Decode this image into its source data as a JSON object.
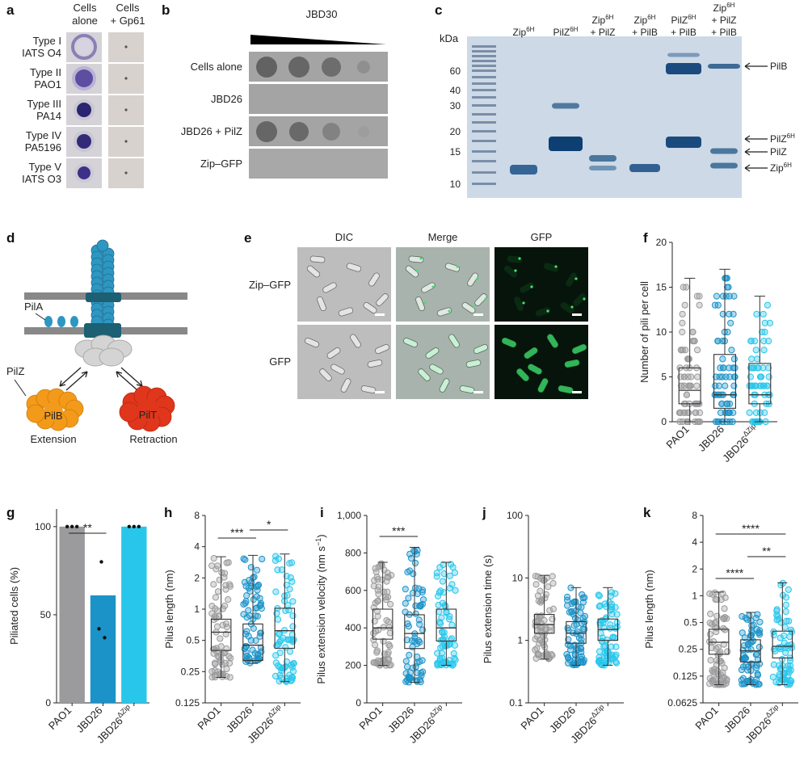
{
  "panels": {
    "a": {
      "letter": "a",
      "col_headers": [
        "Cells\nalone",
        "Cells\n+ Gp61"
      ],
      "rows": [
        "Type I\nIATS O4",
        "Type II\nPAO1",
        "Type III\nPA14",
        "Type IV\nPA5196",
        "Type V\nIATS O3"
      ]
    },
    "b": {
      "letter": "b",
      "header": "JBD30",
      "rows": [
        "Cells alone",
        "JBD26",
        "JBD26 + PilZ",
        "Zip–GFP"
      ]
    },
    "c": {
      "letter": "c",
      "kda_label": "kDa",
      "lanes": [
        "Zip6H",
        "PilZ6H",
        "Zip6H + PilZ",
        "Zip6H + PilB",
        "PilZ6H + PilB",
        "Zip6H + PilZ + PilB"
      ],
      "markers": [
        "60",
        "40",
        "30",
        "20",
        "15",
        "10"
      ],
      "band_labels": [
        "PilB",
        "PilZ6H",
        "PilZ",
        "Zip6H"
      ]
    },
    "d": {
      "letter": "d",
      "labels": {
        "pila": "PilA",
        "pilz": "PilZ",
        "pilb": "PilB",
        "pilt": "PilT",
        "extension": "Extension",
        "retraction": "Retraction"
      }
    },
    "e": {
      "letter": "e",
      "cols": [
        "DIC",
        "Merge",
        "GFP"
      ],
      "rows": [
        "Zip–GFP",
        "GFP"
      ]
    },
    "colors": {
      "paO1": "#9b9b9d",
      "jbd26": "#1c93c8",
      "jbd26dzip": "#29c6ec",
      "diagram_blue": "#2d97c2",
      "diagram_dark": "#1d5f73",
      "pilb": "#f39a1a",
      "pilt": "#e0361c"
    }
  },
  "chart_data": [
    {
      "id": "f",
      "letter": "f",
      "type": "box",
      "categories": [
        "PAO1",
        "JBD26",
        "JBD26ΔZip"
      ],
      "ylabel": "Number of pili per cell",
      "ylim": [
        0,
        20
      ],
      "yticks": [
        "0",
        "5",
        "10",
        "15",
        "20"
      ],
      "scale": "linear",
      "boxes": [
        {
          "min": 0,
          "q1": 2,
          "median": 3.5,
          "q3": 6,
          "max": 16
        },
        {
          "min": 0,
          "q1": 1.5,
          "median": 3,
          "q3": 7.5,
          "max": 17
        },
        {
          "min": 0,
          "q1": 2,
          "median": 3,
          "q3": 6.5,
          "max": 14
        }
      ]
    },
    {
      "id": "g",
      "letter": "g",
      "type": "bar",
      "categories": [
        "PAO1",
        "JBD26",
        "JBD26ΔZip"
      ],
      "ylabel": "Piliated cells (%)",
      "ylim": [
        0,
        110
      ],
      "yticks": [
        "0",
        "50",
        "100"
      ],
      "values": [
        100,
        61,
        100
      ],
      "points": [
        [
          100,
          100,
          100
        ],
        [
          80,
          42,
          37
        ],
        [
          100,
          100,
          100
        ]
      ],
      "significance": [
        {
          "from": 0,
          "to": 1,
          "label": "**"
        }
      ]
    },
    {
      "id": "h",
      "letter": "h",
      "type": "box",
      "categories": [
        "PAO1",
        "JBD26",
        "JBD26ΔZip"
      ],
      "ylabel": "Pilus length (nm)",
      "ylim": [
        0.125,
        8
      ],
      "yticks": [
        "0.125",
        "0.25",
        "0.5",
        "1",
        "2",
        "4",
        "8"
      ],
      "scale": "log2",
      "boxes": [
        {
          "min": 0.22,
          "q1": 0.4,
          "median": 0.6,
          "q3": 0.8,
          "max": 3.2
        },
        {
          "min": 0.3,
          "q1": 0.32,
          "median": 0.45,
          "q3": 0.72,
          "max": 3.3
        },
        {
          "min": 0.2,
          "q1": 0.42,
          "median": 0.62,
          "q3": 1.02,
          "max": 3.4
        }
      ],
      "significance": [
        {
          "from": 0,
          "to": 1,
          "label": "***"
        },
        {
          "from": 1,
          "to": 2,
          "label": "*"
        }
      ]
    },
    {
      "id": "i",
      "letter": "i",
      "type": "box",
      "categories": [
        "PAO1",
        "JBD26",
        "JBD26ΔZip"
      ],
      "ylabel": "Pilus extension velocity (nm s−1)",
      "ylim": [
        0,
        1000
      ],
      "yticks": [
        "0",
        "200",
        "400",
        "600",
        "800",
        "1,000"
      ],
      "scale": "linear",
      "boxes": [
        {
          "min": 200,
          "q1": 340,
          "median": 400,
          "q3": 500,
          "max": 750
        },
        {
          "min": 110,
          "q1": 290,
          "median": 370,
          "q3": 470,
          "max": 830
        },
        {
          "min": 200,
          "q1": 330,
          "median": 400,
          "q3": 500,
          "max": 750
        }
      ],
      "significance": [
        {
          "from": 0,
          "to": 1,
          "label": "***"
        }
      ]
    },
    {
      "id": "j",
      "letter": "j",
      "type": "box",
      "categories": [
        "PAO1",
        "JBD26",
        "JBD26ΔZip"
      ],
      "ylabel": "Pilus extension time (s)",
      "ylim": [
        0.1,
        100
      ],
      "yticks": [
        "0.1",
        "1",
        "10",
        "100"
      ],
      "scale": "log10",
      "boxes": [
        {
          "min": 0.5,
          "q1": 1.3,
          "median": 1.8,
          "q3": 2.6,
          "max": 11
        },
        {
          "min": 0.4,
          "q1": 0.9,
          "median": 1.3,
          "q3": 2.0,
          "max": 7
        },
        {
          "min": 0.4,
          "q1": 1.0,
          "median": 1.5,
          "q3": 2.2,
          "max": 7
        }
      ]
    },
    {
      "id": "k",
      "letter": "k",
      "type": "box",
      "categories": [
        "PAO1",
        "JBD26",
        "JBD26ΔZip"
      ],
      "ylabel": "Pilus length (nm)",
      "ylim": [
        0.0625,
        8
      ],
      "yticks": [
        "0.0625",
        "0.125",
        "0.25",
        "0.5",
        "1",
        "2",
        "4",
        "8"
      ],
      "scale": "log2",
      "boxes": [
        {
          "min": 0.1,
          "q1": 0.22,
          "median": 0.3,
          "q3": 0.42,
          "max": 1.1
        },
        {
          "min": 0.1,
          "q1": 0.18,
          "median": 0.24,
          "q3": 0.32,
          "max": 0.65
        },
        {
          "min": 0.1,
          "q1": 0.2,
          "median": 0.27,
          "q3": 0.4,
          "max": 1.4
        }
      ],
      "significance": [
        {
          "from": 0,
          "to": 2,
          "label": "****"
        },
        {
          "from": 1,
          "to": 2,
          "label": "**"
        },
        {
          "from": 0,
          "to": 1,
          "label": "****"
        }
      ]
    }
  ]
}
